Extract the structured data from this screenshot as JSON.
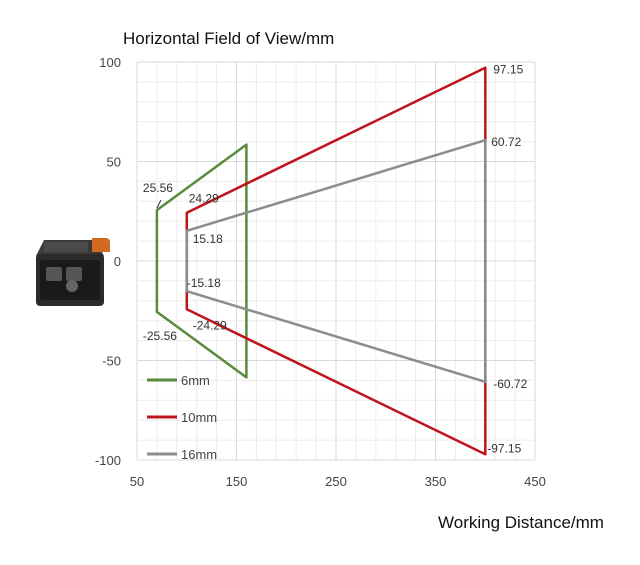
{
  "chart_data": {
    "type": "line",
    "title": "Horizontal Field of View/mm",
    "xlabel": "Working Distance/mm",
    "ylabel": "",
    "xlim": [
      50,
      450
    ],
    "ylim": [
      -100,
      100
    ],
    "x_ticks": [
      "50",
      "150",
      "250",
      "350",
      "450"
    ],
    "y_ticks": [
      "100",
      "50",
      "0",
      "-50",
      "-100"
    ],
    "grid": true,
    "legend_position": "bottom-left",
    "series": [
      {
        "name": "6mm",
        "color": "#5a8a3c",
        "points": [
          [
            70,
            25.56
          ],
          [
            160,
            58.5
          ],
          [
            160,
            -58.5
          ],
          [
            70,
            -25.56
          ]
        ],
        "labels": [
          {
            "text": "25.56",
            "x": 70,
            "y": 25.56
          },
          {
            "text": "-25.56",
            "x": 70,
            "y": -25.56
          }
        ]
      },
      {
        "name": "10mm",
        "color": "#c0141c",
        "points": [
          [
            100,
            24.29
          ],
          [
            400,
            97.15
          ],
          [
            400,
            -97.15
          ],
          [
            100,
            -24.29
          ]
        ],
        "labels": [
          {
            "text": "24.29",
            "x": 100,
            "y": 24.29
          },
          {
            "text": "-24.29",
            "x": 100,
            "y": -24.29
          },
          {
            "text": "97.15",
            "x": 400,
            "y": 97.15
          },
          {
            "text": "-97.15",
            "x": 400,
            "y": -97.15
          }
        ]
      },
      {
        "name": "16mm",
        "color": "#8c8c8c",
        "points": [
          [
            100,
            15.18
          ],
          [
            400,
            60.72
          ],
          [
            400,
            -60.72
          ],
          [
            100,
            -15.18
          ]
        ],
        "labels": [
          {
            "text": "15.18",
            "x": 100,
            "y": 15.18
          },
          {
            "text": "-15.18",
            "x": 100,
            "y": -15.18
          },
          {
            "text": "60.72",
            "x": 400,
            "y": 60.72
          },
          {
            "text": "-60.72",
            "x": 400,
            "y": -60.72
          }
        ]
      }
    ]
  }
}
